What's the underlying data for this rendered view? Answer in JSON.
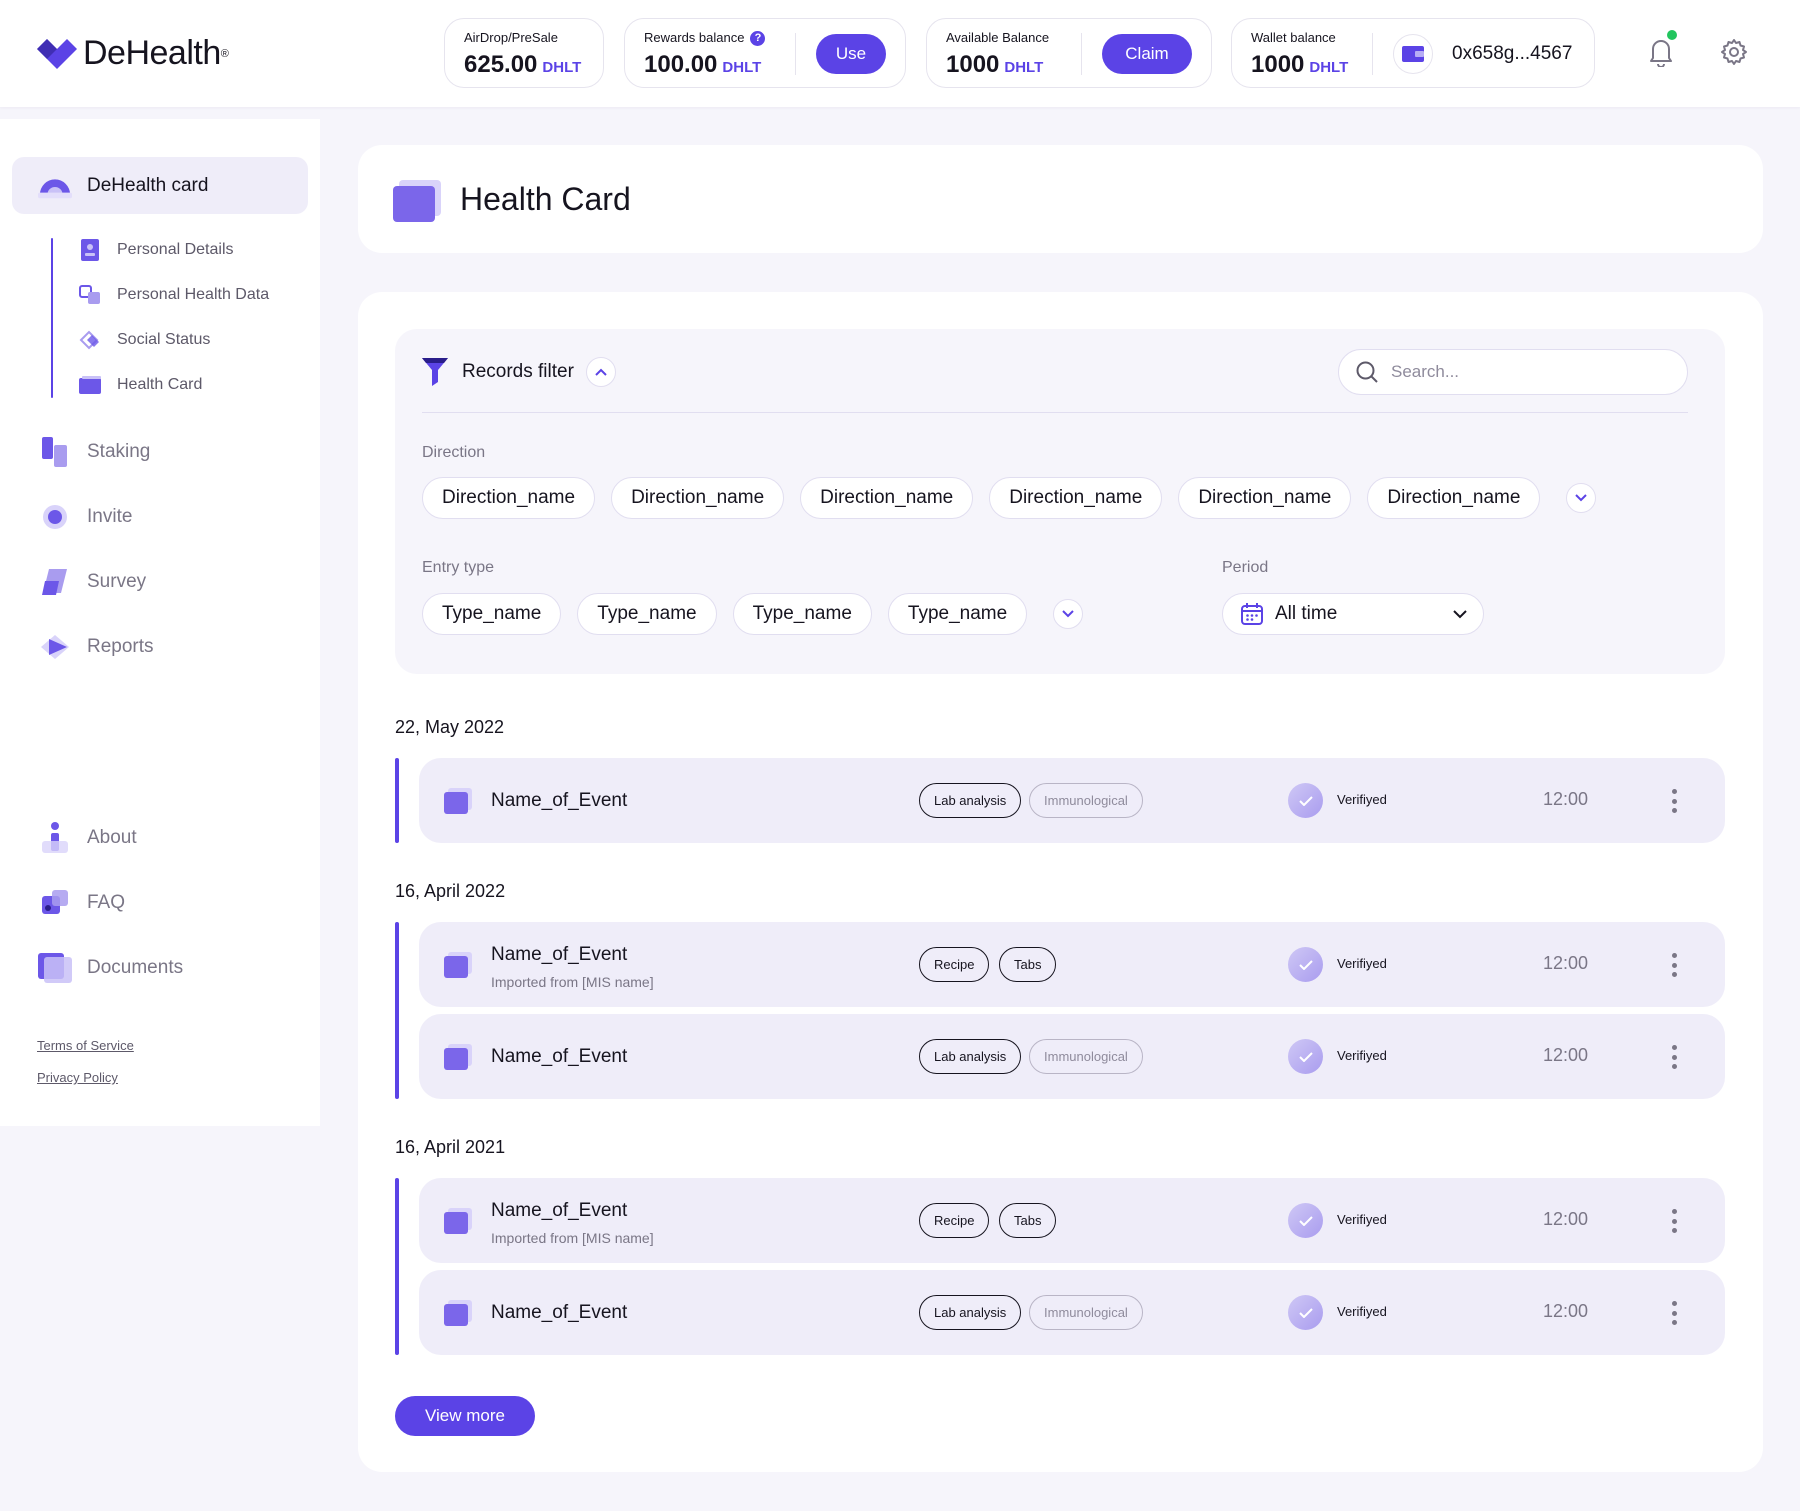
{
  "brand": {
    "name": "DeHealth",
    "reg_mark": "®"
  },
  "colors": {
    "accent": "#5b43e6",
    "accent_soft": "#efedf9",
    "notification_dot": "#22c55e",
    "page_bg": "#f6f5fb"
  },
  "balances": {
    "airdrop": {
      "label": "AirDrop/PreSale",
      "value": "625.00",
      "unit": "DHLT"
    },
    "rewards": {
      "label": "Rewards balance",
      "help": "?",
      "value": "100.00",
      "unit": "DHLT",
      "button": "Use"
    },
    "available": {
      "label": "Available Balance",
      "value": "1000",
      "unit": "DHLT",
      "button": "Claim"
    },
    "wallet": {
      "label": "Wallet balance",
      "value": "1000",
      "unit": "DHLT",
      "address": "0x658g...4567"
    }
  },
  "header_icons": {
    "notifications": "bell-icon",
    "settings": "gear-icon"
  },
  "sidebar": {
    "main": {
      "label": "DeHealth card",
      "icon": "card-icon"
    },
    "sub_items": [
      {
        "label": "Personal Details",
        "icon": "id-icon"
      },
      {
        "label": "Personal Health Data",
        "icon": "data-icon"
      },
      {
        "label": "Social Status",
        "icon": "social-icon"
      },
      {
        "label": "Health Card",
        "icon": "health-card-icon"
      }
    ],
    "items": [
      {
        "label": "Staking",
        "icon": "staking-icon"
      },
      {
        "label": "Invite",
        "icon": "invite-icon"
      },
      {
        "label": "Survey",
        "icon": "survey-icon"
      },
      {
        "label": "Reports",
        "icon": "reports-icon"
      }
    ],
    "bottom_items": [
      {
        "label": "About",
        "icon": "about-icon"
      },
      {
        "label": "FAQ",
        "icon": "faq-icon"
      },
      {
        "label": "Documents",
        "icon": "documents-icon"
      }
    ],
    "legal": {
      "terms": "Terms of Service",
      "privacy": "Privacy Policy"
    }
  },
  "page": {
    "title": "Health Card"
  },
  "filter": {
    "title": "Records filter",
    "search_placeholder": "Search...",
    "direction": {
      "label": "Direction",
      "chips": [
        "Direction_name",
        "Direction_name",
        "Direction_name",
        "Direction_name",
        "Direction_name",
        "Direction_name"
      ]
    },
    "entry_type": {
      "label": "Entry type",
      "chips": [
        "Type_name",
        "Type_name",
        "Type_name",
        "Type_name"
      ]
    },
    "period": {
      "label": "Period",
      "value": "All time"
    }
  },
  "groups": [
    {
      "date": "22, May 2022",
      "records": [
        {
          "name": "Name_of_Event",
          "tags": [
            {
              "text": "Lab analysis",
              "style": "dark"
            },
            {
              "text": "Immunological",
              "style": "light"
            }
          ],
          "status": "Verifiyed",
          "time": "12:00"
        }
      ]
    },
    {
      "date": "16, April 2022",
      "records": [
        {
          "name": "Name_of_Event",
          "subtitle": "Imported from [MIS name]",
          "tags": [
            {
              "text": "Recipe",
              "style": "dark"
            },
            {
              "text": "Tabs",
              "style": "dark"
            }
          ],
          "status": "Verifiyed",
          "time": "12:00"
        },
        {
          "name": "Name_of_Event",
          "tags": [
            {
              "text": "Lab analysis",
              "style": "dark"
            },
            {
              "text": "Immunological",
              "style": "light"
            }
          ],
          "status": "Verifiyed",
          "time": "12:00"
        }
      ]
    },
    {
      "date": "16, April 2021",
      "records": [
        {
          "name": "Name_of_Event",
          "subtitle": "Imported from [MIS name]",
          "tags": [
            {
              "text": "Recipe",
              "style": "dark"
            },
            {
              "text": "Tabs",
              "style": "dark"
            }
          ],
          "status": "Verifiyed",
          "time": "12:00"
        },
        {
          "name": "Name_of_Event",
          "tags": [
            {
              "text": "Lab analysis",
              "style": "dark"
            },
            {
              "text": "Immunological",
              "style": "light"
            }
          ],
          "status": "Verifiyed",
          "time": "12:00"
        }
      ]
    }
  ],
  "view_more": "View more"
}
